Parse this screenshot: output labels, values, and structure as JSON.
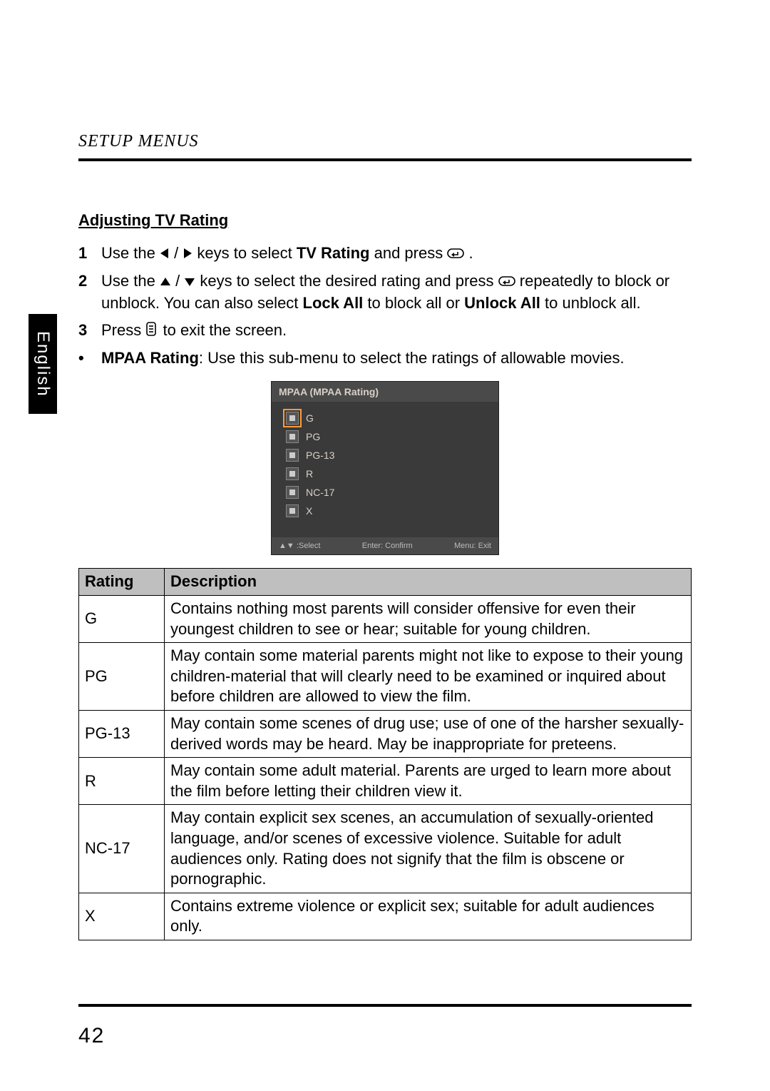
{
  "header": {
    "title": "SETUP MENUS"
  },
  "side_tab": "English",
  "page_number": "42",
  "section": {
    "heading": "Adjusting TV Rating"
  },
  "steps": [
    {
      "num": "1",
      "pre": "Use the ",
      "mid": " keys to select ",
      "bold1": "TV Rating",
      "post1": " and press ",
      "post2": "."
    },
    {
      "num": "2",
      "pre": "Use the ",
      "mid": " keys to select the desired rating and press ",
      "post1": " repeatedly to block or unblock. You can also select ",
      "bold1": "Lock All",
      "post2": " to block all or ",
      "bold2": "Unlock All",
      "post3": " to unblock all."
    },
    {
      "num": "3",
      "pre": "Press ",
      "post1": " to exit the screen."
    }
  ],
  "bullet": {
    "bold": "MPAA Rating",
    "text": ": Use this sub-menu to select the ratings of allowable movies."
  },
  "mpaa_box": {
    "title": "MPAA (MPAA Rating)",
    "items": [
      "G",
      "PG",
      "PG-13",
      "R",
      "NC-17",
      "X"
    ],
    "selected_index": 0,
    "footer": {
      "left": "▲▼ :Select",
      "mid": "Enter: Confirm",
      "right": "Menu: Exit"
    },
    "colors": {
      "background": "#3a3a3a",
      "header_bg": "#4a4a4a",
      "text": "#d8d0c8",
      "highlight": "#ff9a3c"
    }
  },
  "ratings_table": {
    "columns": [
      "Rating",
      "Description"
    ],
    "header_bg": "#bfbfbf",
    "border_color": "#000000",
    "col_widths": [
      "120px",
      "auto"
    ],
    "fontsize": 22,
    "rows": [
      {
        "rating": "G",
        "desc": "Contains nothing most parents will consider offensive for even their youngest children to see or hear; suitable for young children."
      },
      {
        "rating": "PG",
        "desc": "May contain some material parents might not like to expose to their young children-material that will clearly need to be examined or inquired about before children are allowed to view the film."
      },
      {
        "rating": "PG-13",
        "desc": "May contain some scenes of drug use; use of one of the harsher sexually-derived words may be heard. May be inappropriate for preteens."
      },
      {
        "rating": "R",
        "desc": "May contain some adult material. Parents are urged to learn more about the film before letting their children view it."
      },
      {
        "rating": "NC-17",
        "desc": "May contain explicit sex scenes, an accumulation of sexually-oriented language, and/or scenes of excessive violence. Suitable for adult audiences only. Rating does not signify that the film is obscene or pornographic."
      },
      {
        "rating": "X",
        "desc": "Contains extreme violence or explicit sex; suitable for adult audiences only."
      }
    ]
  }
}
